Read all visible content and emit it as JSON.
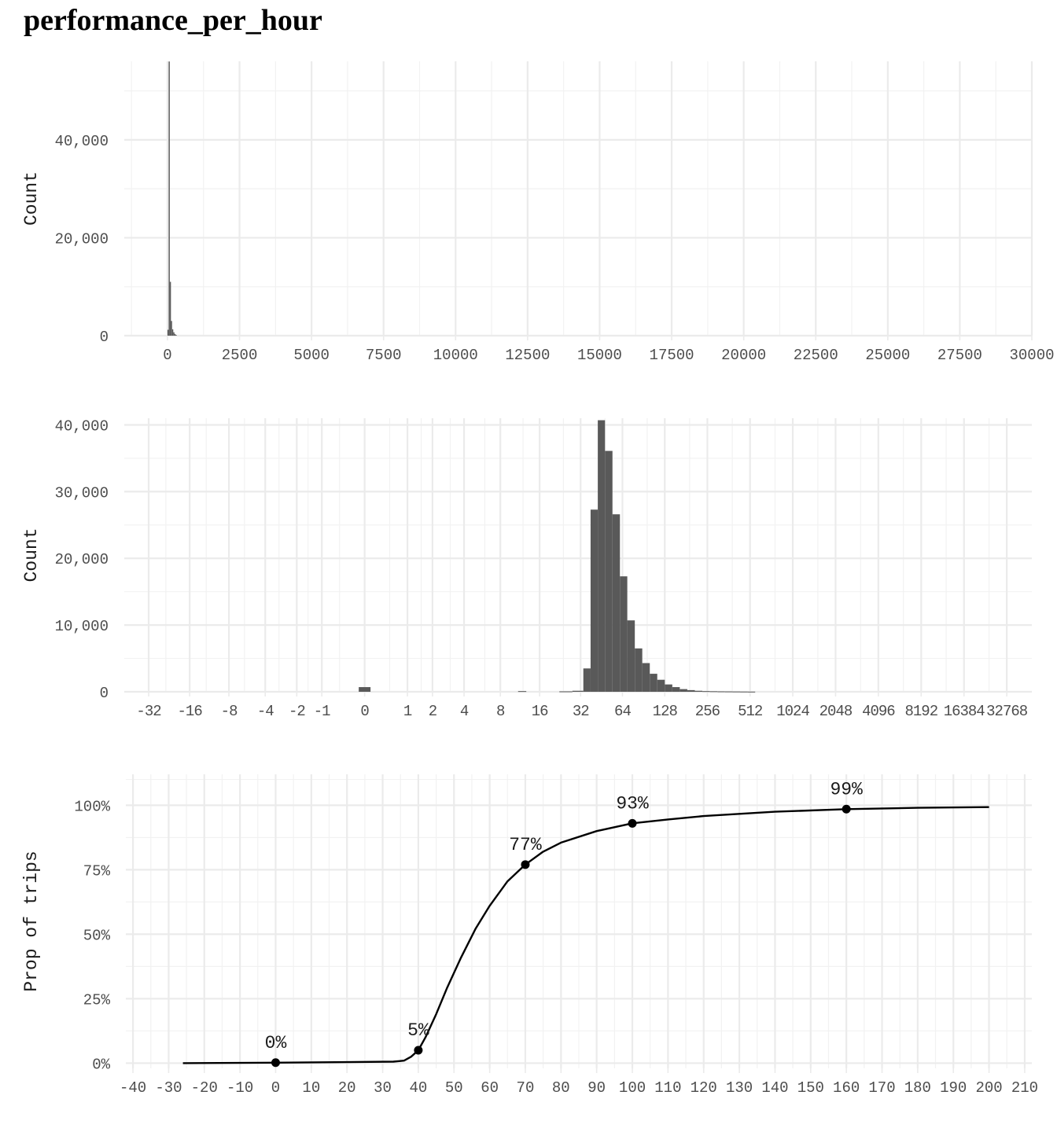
{
  "page": {
    "title": "performance_per_hour"
  },
  "chart_data": [
    {
      "type": "bar",
      "subtype": "histogram",
      "ylabel": "Count",
      "xlim": [
        -1500,
        30000
      ],
      "ylim": [
        0,
        57000
      ],
      "x_ticks": [
        0,
        2500,
        5000,
        7500,
        10000,
        12500,
        15000,
        17500,
        20000,
        22500,
        25000,
        27500,
        30000
      ],
      "x_tick_labels": [
        "0",
        "2500",
        "5000",
        "7500",
        "10000",
        "12500",
        "15000",
        "17500",
        "20000",
        "22500",
        "25000",
        "27500",
        "30000"
      ],
      "y_ticks": [
        0,
        20000,
        40000
      ],
      "y_tick_labels": [
        "0",
        "20,000",
        "40,000"
      ],
      "bins": [
        {
          "x0": 0,
          "x1": 40,
          "count": 1200
        },
        {
          "x0": 40,
          "x1": 80,
          "count": 56000
        },
        {
          "x0": 80,
          "x1": 120,
          "count": 11000
        },
        {
          "x0": 120,
          "x1": 160,
          "count": 3000
        },
        {
          "x0": 160,
          "x1": 200,
          "count": 1300
        },
        {
          "x0": 200,
          "x1": 240,
          "count": 700
        },
        {
          "x0": 240,
          "x1": 280,
          "count": 350
        },
        {
          "x0": 280,
          "x1": 320,
          "count": 150
        }
      ],
      "grid": true
    },
    {
      "type": "bar",
      "subtype": "histogram",
      "x_scale": "pseudo-log (base 2)",
      "ylabel": "Count",
      "xlim": [
        -48,
        49152
      ],
      "ylim": [
        0,
        41000
      ],
      "x_ticks": [
        -32,
        -16,
        -8,
        -4,
        -2,
        -1,
        0,
        1,
        2,
        4,
        8,
        16,
        32,
        64,
        128,
        256,
        512,
        1024,
        2048,
        4096,
        8192,
        16384,
        32768
      ],
      "x_tick_labels": [
        "-32",
        "-16",
        "-8",
        "-4",
        "-2",
        "-1",
        "0",
        "1",
        "2",
        "4",
        "8",
        "16",
        "32",
        "64",
        "128",
        "256",
        "512",
        "1024",
        "2048",
        "4096",
        "8192",
        "16384",
        "32768"
      ],
      "y_ticks": [
        0,
        10000,
        20000,
        30000,
        40000
      ],
      "y_tick_labels": [
        "0",
        "10,000",
        "20,000",
        "30,000",
        "40,000"
      ],
      "bins": [
        {
          "x0": -0.1,
          "x1": 0.1,
          "count": 700
        },
        {
          "x0": 11,
          "x1": 12.7,
          "count": 100
        },
        {
          "x0": 22.4,
          "x1": 27.9,
          "count": 60
        },
        {
          "x0": 27.9,
          "x1": 33.5,
          "count": 150
        },
        {
          "x0": 33.5,
          "x1": 37.8,
          "count": 3500
        },
        {
          "x0": 37.8,
          "x1": 42.6,
          "count": 27300
        },
        {
          "x0": 42.6,
          "x1": 48.0,
          "count": 40700
        },
        {
          "x0": 48.0,
          "x1": 54.3,
          "count": 36100
        },
        {
          "x0": 54.3,
          "x1": 61.4,
          "count": 26600
        },
        {
          "x0": 61.4,
          "x1": 69.3,
          "count": 17300
        },
        {
          "x0": 69.3,
          "x1": 78.4,
          "count": 10700
        },
        {
          "x0": 78.4,
          "x1": 88.6,
          "count": 6500
        },
        {
          "x0": 88.6,
          "x1": 100.2,
          "count": 4300
        },
        {
          "x0": 100.2,
          "x1": 113.2,
          "count": 2700
        },
        {
          "x0": 113.2,
          "x1": 128,
          "count": 1800
        },
        {
          "x0": 128,
          "x1": 144.7,
          "count": 1100
        },
        {
          "x0": 144.7,
          "x1": 163.5,
          "count": 700
        },
        {
          "x0": 163.5,
          "x1": 184.8,
          "count": 400
        },
        {
          "x0": 184.8,
          "x1": 208.9,
          "count": 250
        },
        {
          "x0": 208.9,
          "x1": 236.1,
          "count": 150
        },
        {
          "x0": 236.1,
          "x1": 266.9,
          "count": 100
        },
        {
          "x0": 266.9,
          "x1": 301.7,
          "count": 80
        },
        {
          "x0": 301.7,
          "x1": 341,
          "count": 60
        },
        {
          "x0": 341,
          "x1": 385.4,
          "count": 50
        },
        {
          "x0": 385.4,
          "x1": 435.6,
          "count": 40
        },
        {
          "x0": 435.6,
          "x1": 492.4,
          "count": 30
        },
        {
          "x0": 492.4,
          "x1": 556.5,
          "count": 20
        }
      ],
      "grid": true
    },
    {
      "type": "line",
      "subtype": "ecdf",
      "ylabel": "Prop of trips",
      "xlim": [
        -42,
        212
      ],
      "ylim": [
        -0.02,
        1.12
      ],
      "x_ticks": [
        -40,
        -30,
        -20,
        -10,
        0,
        10,
        20,
        30,
        40,
        50,
        60,
        70,
        80,
        90,
        100,
        110,
        120,
        130,
        140,
        150,
        160,
        170,
        180,
        190,
        200,
        210
      ],
      "x_tick_labels": [
        "-40",
        "-30",
        "-20",
        "-10",
        "0",
        "10",
        "20",
        "30",
        "40",
        "50",
        "60",
        "70",
        "80",
        "90",
        "100",
        "110",
        "120",
        "130",
        "140",
        "150",
        "160",
        "170",
        "180",
        "190",
        "200",
        "210"
      ],
      "y_ticks": [
        0,
        0.25,
        0.5,
        0.75,
        1.0
      ],
      "y_tick_labels": [
        "0%",
        "25%",
        "50%",
        "75%",
        "100%"
      ],
      "curve": {
        "x": [
          -26,
          0,
          20,
          33,
          36,
          38,
          40,
          42,
          45,
          48,
          52,
          56,
          60,
          65,
          70,
          75,
          80,
          90,
          100,
          110,
          120,
          140,
          160,
          180,
          200
        ],
        "y": [
          0.0,
          0.002,
          0.004,
          0.006,
          0.01,
          0.025,
          0.05,
          0.1,
          0.19,
          0.29,
          0.41,
          0.52,
          0.61,
          0.705,
          0.77,
          0.82,
          0.855,
          0.9,
          0.93,
          0.945,
          0.958,
          0.975,
          0.985,
          0.99,
          0.993
        ]
      },
      "points": [
        {
          "x": 0,
          "y": 0.002,
          "label": "0%"
        },
        {
          "x": 40,
          "y": 0.05,
          "label": "5%"
        },
        {
          "x": 70,
          "y": 0.77,
          "label": "77%"
        },
        {
          "x": 100,
          "y": 0.93,
          "label": "93%"
        },
        {
          "x": 160,
          "y": 0.985,
          "label": "99%"
        }
      ],
      "grid": true
    }
  ]
}
